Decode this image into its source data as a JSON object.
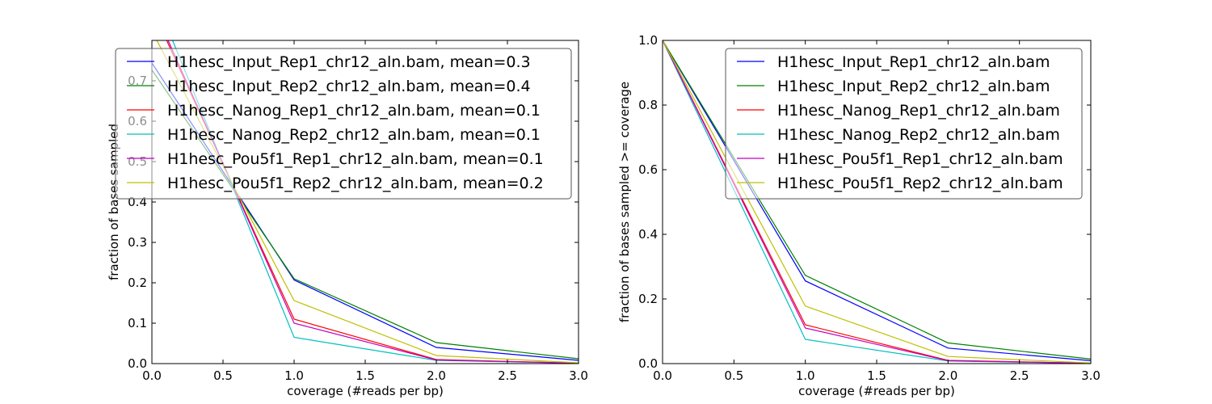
{
  "chart_data": [
    {
      "type": "line",
      "title": "",
      "xlabel": "coverage (#reads per bp)",
      "ylabel": "fraction of bases sampled",
      "xlim": [
        0.0,
        3.0
      ],
      "ylim": [
        0.0,
        0.8
      ],
      "xticks": [
        "0.0",
        "0.5",
        "1.0",
        "1.5",
        "2.0",
        "2.5",
        "3.0"
      ],
      "yticks": [
        "0.0",
        "0.1",
        "0.2",
        "0.3",
        "0.4",
        "0.5",
        "0.6",
        "0.7"
      ],
      "grid": false,
      "legend_position": "top-right",
      "x": [
        0,
        1,
        2,
        3
      ],
      "series": [
        {
          "name": "H1hesc_Input_Rep1_chr12_aln.bam, mean=0.3",
          "color": "#0000ff",
          "values": [
            0.744,
            0.207,
            0.04,
            0.008
          ]
        },
        {
          "name": "H1hesc_Input_Rep2_chr12_aln.bam, mean=0.4",
          "color": "#008000",
          "values": [
            0.727,
            0.21,
            0.052,
            0.012
          ]
        },
        {
          "name": "H1hesc_Nanog_Rep1_chr12_aln.bam, mean=0.1",
          "color": "#ff0000",
          "values": [
            0.88,
            0.11,
            0.01,
            0.001
          ]
        },
        {
          "name": "H1hesc_Nanog_Rep2_chr12_aln.bam, mean=0.1",
          "color": "#00bfbf",
          "values": [
            0.925,
            0.065,
            0.008,
            0.001
          ]
        },
        {
          "name": "H1hesc_Pou5f1_Rep1_chr12_aln.bam, mean=0.1",
          "color": "#bf00bf",
          "values": [
            0.89,
            0.1,
            0.009,
            0.001
          ]
        },
        {
          "name": "H1hesc_Pou5f1_Rep2_chr12_aln.bam, mean=0.2",
          "color": "#bfbf00",
          "values": [
            0.823,
            0.156,
            0.02,
            0.002
          ]
        }
      ]
    },
    {
      "type": "line",
      "title": "",
      "xlabel": "coverage (#reads per bp)",
      "ylabel": "fraction of bases sampled >= coverage",
      "xlim": [
        0.0,
        3.0
      ],
      "ylim": [
        0.0,
        1.0
      ],
      "xticks": [
        "0.0",
        "0.5",
        "1.0",
        "1.5",
        "2.0",
        "2.5",
        "3.0"
      ],
      "yticks": [
        "0.0",
        "0.2",
        "0.4",
        "0.6",
        "0.8",
        "1.0"
      ],
      "grid": false,
      "legend_position": "top-right",
      "x": [
        0,
        1,
        2,
        3
      ],
      "series": [
        {
          "name": "H1hesc_Input_Rep1_chr12_aln.bam",
          "color": "#0000ff",
          "values": [
            1.0,
            0.256,
            0.048,
            0.009
          ]
        },
        {
          "name": "H1hesc_Input_Rep2_chr12_aln.bam",
          "color": "#008000",
          "values": [
            1.0,
            0.273,
            0.064,
            0.014
          ]
        },
        {
          "name": "H1hesc_Nanog_Rep1_chr12_aln.bam",
          "color": "#ff0000",
          "values": [
            1.0,
            0.12,
            0.01,
            0.001
          ]
        },
        {
          "name": "H1hesc_Nanog_Rep2_chr12_aln.bam",
          "color": "#00bfbf",
          "values": [
            1.0,
            0.075,
            0.008,
            0.001
          ]
        },
        {
          "name": "H1hesc_Pou5f1_Rep1_chr12_aln.bam",
          "color": "#bf00bf",
          "values": [
            1.0,
            0.11,
            0.009,
            0.001
          ]
        },
        {
          "name": "H1hesc_Pou5f1_Rep2_chr12_aln.bam",
          "color": "#bfbf00",
          "values": [
            1.0,
            0.178,
            0.022,
            0.002
          ]
        }
      ]
    }
  ]
}
